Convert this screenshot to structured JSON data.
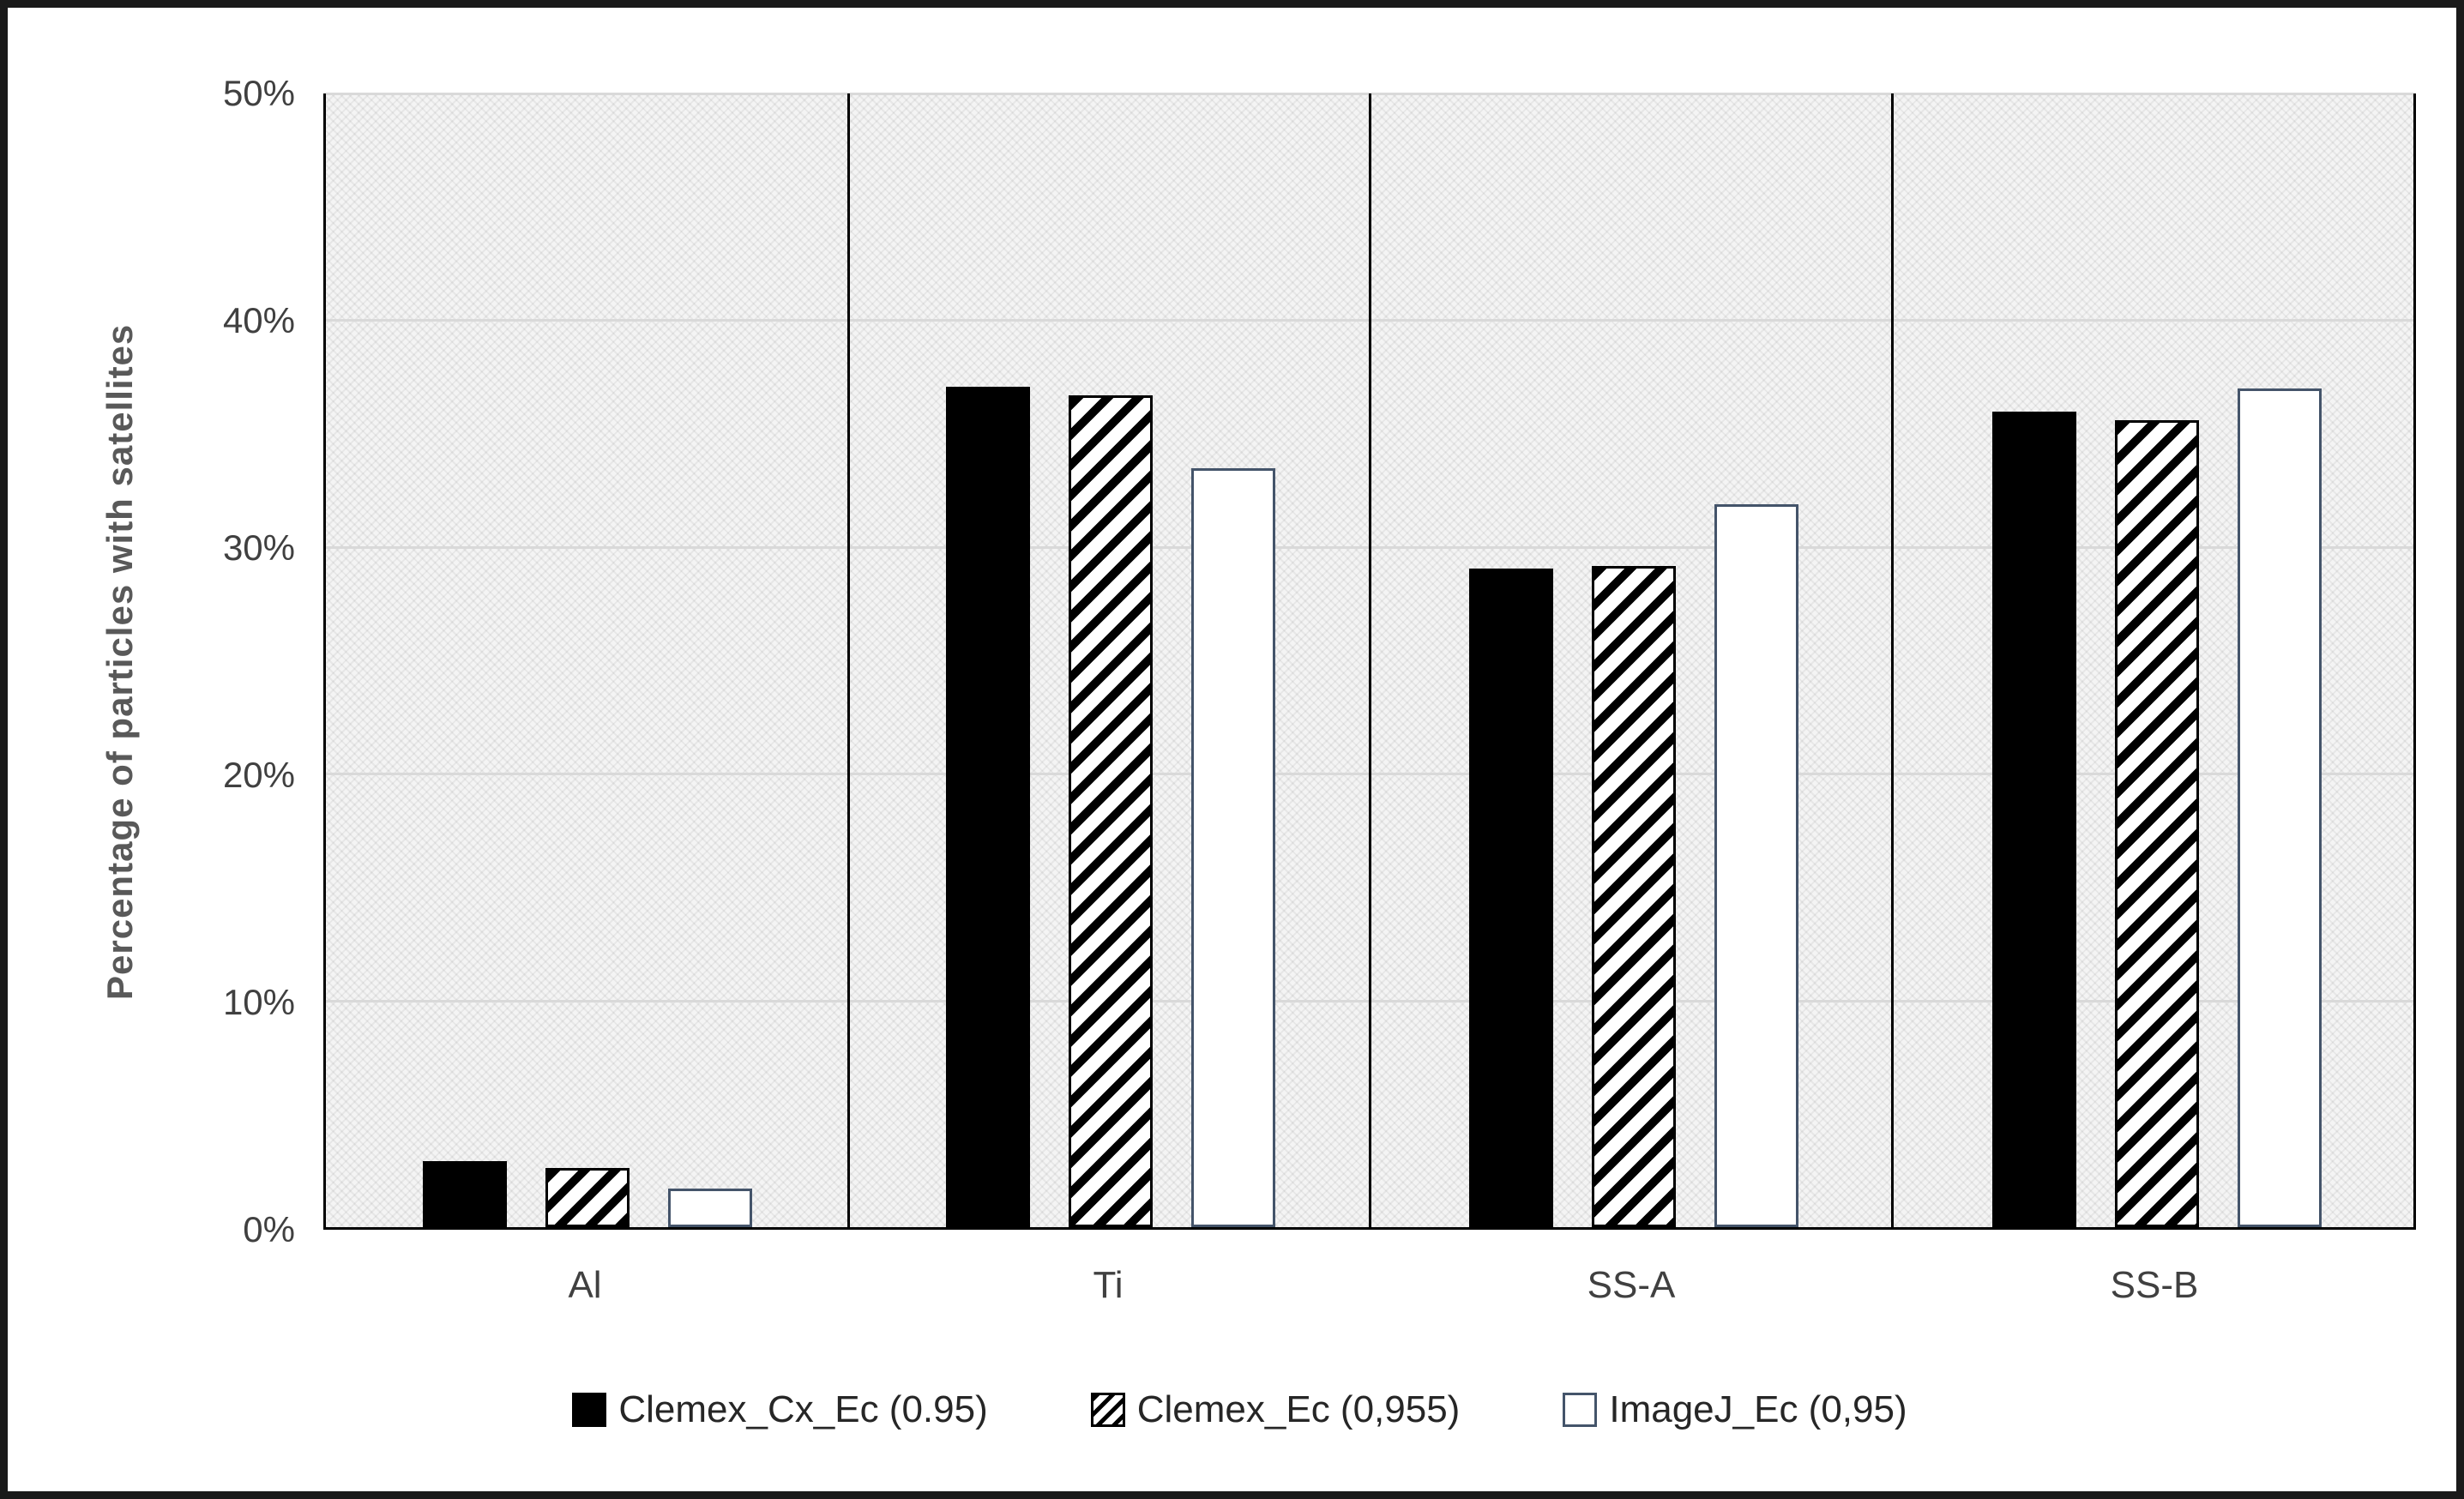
{
  "figure": {
    "background": "#ffffff",
    "border_color": "#1a1a1a"
  },
  "chart_data": {
    "type": "bar",
    "title": "",
    "categories": [
      "Al",
      "Ti",
      "SS-A",
      "SS-B"
    ],
    "series": [
      {
        "name": "Clemex_Cx_Ec (0.95)",
        "style": "solid-black",
        "color": "#000000",
        "values": [
          2.9,
          37.0,
          29.0,
          35.9
        ]
      },
      {
        "name": "Clemex_Ec (0,955)",
        "style": "hatched-diagonal",
        "color": "#000000",
        "values": [
          2.6,
          36.6,
          29.1,
          35.5
        ]
      },
      {
        "name": "ImageJ_Ec (0,95)",
        "style": "white-outlined",
        "color": "#44546a",
        "values": [
          1.7,
          33.4,
          31.8,
          36.9
        ]
      }
    ],
    "xlabel": "",
    "ylabel": "Percentage of particles with satellites",
    "ylim": [
      0,
      50
    ],
    "yticks": [
      0,
      10,
      20,
      30,
      40,
      50
    ],
    "ytick_labels": [
      "0%",
      "10%",
      "20%",
      "30%",
      "40%",
      "50%"
    ],
    "grid": true,
    "legend_position": "bottom",
    "panel_separators": true,
    "colors": {
      "gridline": "#d9d9d9",
      "separator": "#000000",
      "axis": "#000000",
      "tick_text": "#404040",
      "ylabel_text": "#595959",
      "legend_text": "#262626",
      "plot_background": "#f4f4f4"
    }
  }
}
